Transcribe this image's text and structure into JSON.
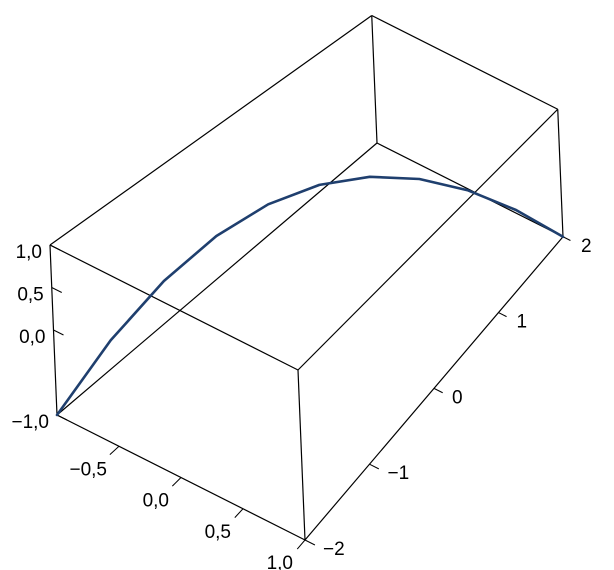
{
  "chart_data": {
    "type": "line3d",
    "series": [
      {
        "color": "#1f3f6e",
        "x": [
          -1,
          -0.8,
          -0.6,
          -0.4,
          -0.2,
          0,
          0.2,
          0.4,
          0.6,
          0.8,
          1
        ],
        "y": [
          -2,
          -1.6,
          -1.2,
          -0.8,
          -0.4,
          0,
          0.4,
          0.8,
          1.2,
          1.6,
          2
        ],
        "z": [
          -1,
          -0.28,
          0.28,
          0.68,
          0.92,
          1,
          0.92,
          0.68,
          0.28,
          -0.28,
          -1
        ]
      }
    ],
    "xlim": [
      -1,
      1
    ],
    "ylim": [
      -2,
      2
    ],
    "zlim": [
      -1,
      1
    ],
    "xticks": [
      {
        "value": -0.5,
        "label": "−0,5"
      },
      {
        "value": 0,
        "label": "0,0"
      },
      {
        "value": 0.5,
        "label": "0,5"
      },
      {
        "value": 1,
        "label": "1,0"
      }
    ],
    "yticks": [
      {
        "value": -2,
        "label": "−2"
      },
      {
        "value": -1,
        "label": "−1"
      },
      0,
      1,
      2
    ],
    "zticks": [
      {
        "value": -1,
        "label": "−1,0"
      },
      {
        "value": 0,
        "label": "0,0"
      },
      {
        "value": 0.5,
        "label": "0,5"
      },
      {
        "value": 1,
        "label": "1,0"
      }
    ]
  }
}
